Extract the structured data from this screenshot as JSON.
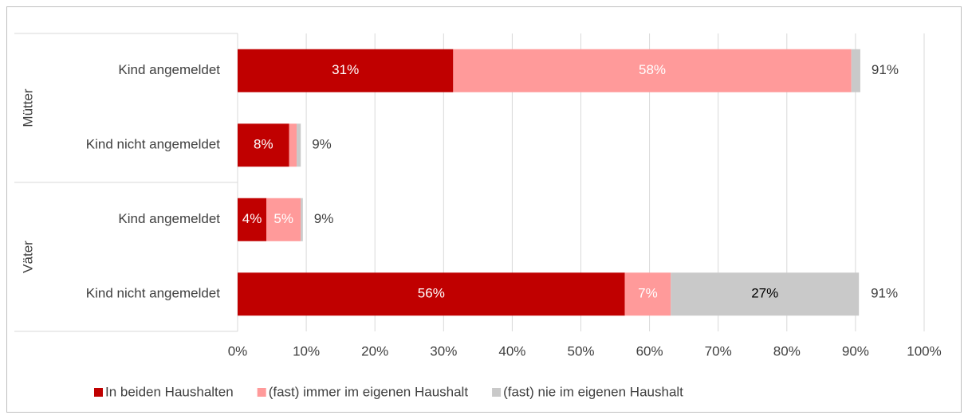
{
  "chart_data": {
    "type": "stacked_barh",
    "groups": [
      {
        "name": "Mütter",
        "categories": [
          "Kind angemeldet",
          "Kind nicht angemeldet"
        ]
      },
      {
        "name": "Väter",
        "categories": [
          "Kind angemeldet",
          "Kind nicht angemeldet"
        ]
      }
    ],
    "series": [
      {
        "name": "In beiden Haushalten",
        "color": "#c00000",
        "label_color": "#ffffff",
        "values": [
          31.4,
          7.5,
          4.2,
          56.4
        ],
        "value_labels": [
          "31%",
          "8%",
          "4%",
          "56%"
        ]
      },
      {
        "name": "(fast) immer im eigenen Haushalt",
        "color": "#ff9a9a",
        "label_color": "#ffffff",
        "values": [
          58.0,
          1.1,
          5.0,
          6.7
        ],
        "value_labels": [
          "58%",
          null,
          "5%",
          "7%"
        ]
      },
      {
        "name": "(fast) nie im eigenen Haushalt",
        "color": "#c9c9c9",
        "label_color": "#000000",
        "values": [
          1.3,
          0.6,
          0.3,
          27.4
        ],
        "value_labels": [
          null,
          null,
          null,
          "27%"
        ]
      }
    ],
    "totals": {
      "values": [
        90.7,
        9.2,
        9.5,
        90.6
      ],
      "value_labels": [
        "91%",
        "9%",
        "9%",
        "91%"
      ]
    },
    "xlim": [
      0,
      100
    ],
    "xticks": [
      {
        "value": 0,
        "label": "0%"
      },
      {
        "value": 10,
        "label": "10%"
      },
      {
        "value": 20,
        "label": "20%"
      },
      {
        "value": 30,
        "label": "30%"
      },
      {
        "value": 40,
        "label": "40%"
      },
      {
        "value": 50,
        "label": "50%"
      },
      {
        "value": 60,
        "label": "60%"
      },
      {
        "value": 70,
        "label": "70%"
      },
      {
        "value": 80,
        "label": "80%"
      },
      {
        "value": 90,
        "label": "90%"
      },
      {
        "value": 100,
        "label": "100%"
      }
    ],
    "grid": true,
    "legend": "bottom"
  }
}
